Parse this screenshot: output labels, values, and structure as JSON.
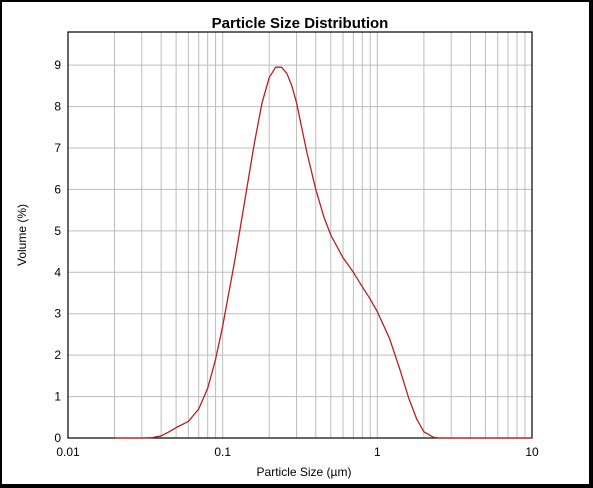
{
  "chart_data": {
    "type": "line",
    "title": "Particle Size Distribution",
    "xlabel": "Particle Size (µm)",
    "ylabel": "Volume (%)",
    "x_scale": "log",
    "xlim": [
      0.01,
      10
    ],
    "ylim": [
      0,
      9.8
    ],
    "grid": true,
    "x_tick_labels": [
      "0.01",
      "0.1",
      "1",
      "10"
    ],
    "x_ticks": [
      0.01,
      0.1,
      1,
      10
    ],
    "y_ticks": [
      0,
      1,
      2,
      3,
      4,
      5,
      6,
      7,
      8,
      9
    ],
    "y_tick_labels": [
      "0",
      "1",
      "2",
      "3",
      "4",
      "5",
      "6",
      "7",
      "8",
      "9"
    ],
    "series": [
      {
        "color": "#b22222",
        "x": [
          0.02,
          0.03,
          0.035,
          0.04,
          0.045,
          0.05,
          0.06,
          0.07,
          0.08,
          0.09,
          0.1,
          0.12,
          0.14,
          0.16,
          0.18,
          0.2,
          0.22,
          0.24,
          0.26,
          0.28,
          0.3,
          0.35,
          0.4,
          0.45,
          0.5,
          0.6,
          0.7,
          0.8,
          0.9,
          1.0,
          1.2,
          1.4,
          1.6,
          1.8,
          2.0,
          2.3,
          2.5,
          3,
          4,
          5,
          7,
          10
        ],
        "y": [
          0,
          0,
          0.01,
          0.05,
          0.15,
          0.25,
          0.4,
          0.7,
          1.2,
          1.9,
          2.7,
          4.3,
          5.8,
          7.1,
          8.1,
          8.7,
          8.95,
          8.95,
          8.8,
          8.5,
          8.1,
          6.9,
          6.0,
          5.35,
          4.9,
          4.35,
          4.0,
          3.65,
          3.35,
          3.05,
          2.4,
          1.65,
          0.95,
          0.45,
          0.15,
          0.02,
          0,
          0,
          0,
          0,
          0,
          0
        ]
      }
    ]
  }
}
